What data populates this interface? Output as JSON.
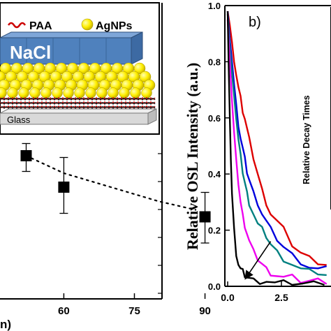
{
  "left_panel": {
    "schematic": {
      "legend_paa": "PAA",
      "legend_agnps": "AgNPs",
      "nacl_label": "NaCl",
      "glass_label": "Glass",
      "colors": {
        "nacl": "#4f81bd",
        "agnps": "#ffee00",
        "glass": "#d9d9d9",
        "paa": "#cc0000"
      }
    },
    "xlabel_partial": "n)"
  },
  "right_panel": {
    "panel_label": "b)",
    "ylabel": "Relative OSL Intensity (a.u.)",
    "inset_label_partial": "Relative Decay Times"
  },
  "chart_data": [
    {
      "type": "scatter",
      "panel": "left",
      "x_ticks": [
        "60",
        "75",
        "90"
      ],
      "xlim": [
        50,
        96
      ],
      "ylim": [
        0,
        1
      ],
      "points": [
        {
          "x": 52,
          "y": 0.82,
          "err_low": 0.73,
          "err_high": 0.89
        },
        {
          "x": 60,
          "y": 0.64,
          "err_low": 0.49,
          "err_high": 0.81
        },
        {
          "x": 90,
          "y": 0.47,
          "err_low": 0.32,
          "err_high": 0.61
        }
      ],
      "fit_line": {
        "style": "dotted",
        "color": "#000000",
        "x": [
          52,
          60,
          70,
          80,
          88
        ],
        "y": [
          0.82,
          0.72,
          0.64,
          0.56,
          0.51
        ]
      }
    },
    {
      "type": "line",
      "panel": "right",
      "xlim": [
        0,
        5.1
      ],
      "ylim": [
        0,
        1.0
      ],
      "x_ticks": [
        "0.0",
        "2.5"
      ],
      "y_ticks": [
        "0.0",
        "0.2",
        "0.4",
        "0.6",
        "0.8",
        "1.0"
      ],
      "arrow": {
        "from": [
          2.0,
          0.16
        ],
        "to": [
          0.85,
          0.03
        ]
      },
      "series": [
        {
          "color": "#dd0000",
          "tau": 1.55,
          "x": [
            0,
            0.1,
            0.2,
            0.3,
            0.4,
            0.5,
            0.6,
            0.7,
            0.8,
            0.9,
            1.0,
            1.2,
            1.4,
            1.6,
            1.8,
            2.0,
            2.3,
            2.6,
            3.0,
            3.4,
            3.8,
            4.2,
            4.6,
            5.0
          ],
          "values": [
            0.98,
            0.93,
            0.87,
            0.8,
            0.76,
            0.71,
            0.67,
            0.63,
            0.6,
            0.56,
            0.52,
            0.46,
            0.4,
            0.34,
            0.3,
            0.26,
            0.23,
            0.2,
            0.15,
            0.12,
            0.1,
            0.09,
            0.08,
            0.07
          ]
        },
        {
          "color": "#0000dd",
          "tau": 1.15,
          "x": [
            0,
            0.1,
            0.2,
            0.3,
            0.4,
            0.5,
            0.6,
            0.7,
            0.8,
            0.9,
            1.0,
            1.2,
            1.4,
            1.6,
            1.8,
            2.0,
            2.3,
            2.6,
            3.0,
            3.4,
            3.8,
            4.2,
            4.6,
            5.0
          ],
          "values": [
            0.98,
            0.88,
            0.8,
            0.72,
            0.64,
            0.58,
            0.53,
            0.49,
            0.45,
            0.41,
            0.38,
            0.33,
            0.3,
            0.26,
            0.23,
            0.2,
            0.17,
            0.14,
            0.11,
            0.09,
            0.07,
            0.06,
            0.06,
            0.05
          ]
        },
        {
          "color": "#008080",
          "tau": 0.95,
          "x": [
            0,
            0.1,
            0.2,
            0.3,
            0.4,
            0.5,
            0.6,
            0.7,
            0.8,
            0.9,
            1.0,
            1.2,
            1.4,
            1.6,
            1.8,
            2.0,
            2.3,
            2.6,
            3.0,
            3.4,
            3.8,
            4.2,
            4.6,
            5.0
          ],
          "values": [
            0.97,
            0.85,
            0.76,
            0.68,
            0.6,
            0.52,
            0.46,
            0.41,
            0.37,
            0.33,
            0.3,
            0.26,
            0.22,
            0.2,
            0.18,
            0.15,
            0.12,
            0.1,
            0.08,
            0.06,
            0.05,
            0.05,
            0.04,
            0.04
          ]
        },
        {
          "color": "#ee00ee",
          "tau": 0.7,
          "x": [
            0,
            0.1,
            0.2,
            0.3,
            0.4,
            0.5,
            0.6,
            0.7,
            0.8,
            0.9,
            1.0,
            1.2,
            1.4,
            1.6,
            1.8,
            2.0,
            2.3,
            2.6,
            3.0,
            3.4,
            3.8,
            4.2,
            4.6,
            5.0
          ],
          "values": [
            0.95,
            0.8,
            0.66,
            0.55,
            0.44,
            0.37,
            0.3,
            0.25,
            0.22,
            0.19,
            0.16,
            0.12,
            0.1,
            0.08,
            0.06,
            0.05,
            0.04,
            0.03,
            0.03,
            0.02,
            0.02,
            0.02,
            0.02,
            0.02
          ]
        },
        {
          "color": "#000000",
          "tau": 0.25,
          "x": [
            0,
            0.05,
            0.1,
            0.15,
            0.2,
            0.3,
            0.4,
            0.5,
            0.6,
            0.7,
            0.8,
            1.0,
            1.2,
            1.5,
            1.8,
            2.2,
            2.6,
            3.0,
            3.5,
            4.0,
            4.5,
            5.0
          ],
          "values": [
            0.98,
            0.78,
            0.6,
            0.45,
            0.33,
            0.2,
            0.12,
            0.08,
            0.06,
            0.05,
            0.04,
            0.03,
            0.02,
            0.02,
            0.02,
            0.01,
            0.01,
            0.01,
            0.01,
            0.01,
            0.01,
            0.01
          ]
        }
      ]
    }
  ]
}
